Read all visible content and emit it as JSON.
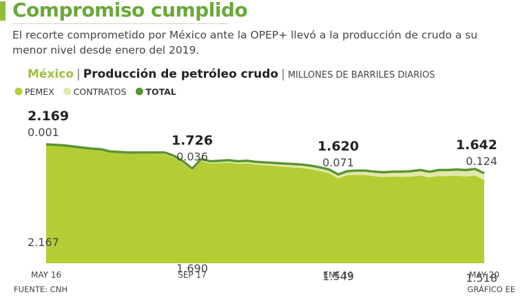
{
  "title": "Compromiso cumplido",
  "subtitle": "El recorte comprometido por México ante la OPEP+ llevó a la producción de crudo a su menor nivel desde enero del 2019.",
  "chart_data": {
    "type": "stacked-area",
    "title_region": "México",
    "title": "Producción de petróleo crudo",
    "unit": "MILLONES DE BARRILES DIARIOS",
    "source": "FUENTE: CNH",
    "credit": "GRÁFICO EE",
    "categories": [
      "MAY 16",
      null,
      null,
      null,
      null,
      null,
      null,
      null,
      null,
      null,
      null,
      null,
      null,
      null,
      null,
      null,
      "SEP 17",
      null,
      null,
      null,
      null,
      null,
      null,
      null,
      null,
      null,
      null,
      null,
      null,
      null,
      null,
      null,
      "ENE 19",
      null,
      null,
      null,
      null,
      null,
      null,
      null,
      null,
      null,
      null,
      null,
      null,
      null,
      null,
      null,
      "MAY 20"
    ],
    "series": [
      {
        "name": "PEMEX",
        "color": "#b5cc34",
        "stack": true,
        "values": [
          2.167,
          2.157,
          2.145,
          2.122,
          2.1,
          2.078,
          2.066,
          2.024,
          2.011,
          1.999,
          1.997,
          1.995,
          1.993,
          1.99,
          1.928,
          1.826,
          1.69,
          1.862,
          1.82,
          1.827,
          1.835,
          1.813,
          1.821,
          1.799,
          1.786,
          1.774,
          1.762,
          1.75,
          1.738,
          1.715,
          1.683,
          1.641,
          1.549,
          1.606,
          1.612,
          1.609,
          1.586,
          1.572,
          1.579,
          1.576,
          1.583,
          1.599,
          1.566,
          1.593,
          1.589,
          1.596,
          1.583,
          1.599,
          1.518
        ],
        "value_labels": [
          "2.167",
          null,
          null,
          null,
          null,
          null,
          null,
          null,
          null,
          null,
          null,
          null,
          null,
          null,
          null,
          null,
          "1.690",
          null,
          null,
          null,
          null,
          null,
          null,
          null,
          null,
          null,
          null,
          null,
          null,
          null,
          null,
          null,
          "1.549",
          null,
          null,
          null,
          null,
          null,
          null,
          null,
          null,
          null,
          null,
          null,
          null,
          null,
          null,
          null,
          "1.518"
        ]
      },
      {
        "name": "CONTRATOS",
        "color": "#e3e8a8",
        "stack": true,
        "values": [
          0.001,
          0.003,
          0.005,
          0.008,
          0.01,
          0.012,
          0.014,
          0.016,
          0.019,
          0.021,
          0.023,
          0.025,
          0.027,
          0.03,
          0.032,
          0.034,
          0.036,
          0.038,
          0.04,
          0.043,
          0.045,
          0.047,
          0.049,
          0.051,
          0.054,
          0.056,
          0.058,
          0.06,
          0.062,
          0.065,
          0.067,
          0.069,
          0.071,
          0.074,
          0.078,
          0.081,
          0.084,
          0.088,
          0.091,
          0.094,
          0.097,
          0.101,
          0.104,
          0.107,
          0.111,
          0.114,
          0.117,
          0.121,
          0.124
        ],
        "value_labels": [
          "0.001",
          null,
          null,
          null,
          null,
          null,
          null,
          null,
          null,
          null,
          null,
          null,
          null,
          null,
          null,
          null,
          "0.036",
          null,
          null,
          null,
          null,
          null,
          null,
          null,
          null,
          null,
          null,
          null,
          null,
          null,
          null,
          null,
          "0.071",
          null,
          null,
          null,
          null,
          null,
          null,
          null,
          null,
          null,
          null,
          null,
          null,
          null,
          null,
          null,
          "0.124"
        ]
      },
      {
        "name": "TOTAL",
        "color": "#5a9432",
        "stack": false,
        "values": [
          2.169,
          2.16,
          2.15,
          2.13,
          2.11,
          2.09,
          2.08,
          2.04,
          2.03,
          2.02,
          2.02,
          2.02,
          2.02,
          2.02,
          1.96,
          1.86,
          1.726,
          1.9,
          1.86,
          1.87,
          1.88,
          1.86,
          1.87,
          1.85,
          1.84,
          1.83,
          1.82,
          1.81,
          1.8,
          1.78,
          1.75,
          1.71,
          1.62,
          1.68,
          1.69,
          1.69,
          1.67,
          1.66,
          1.67,
          1.67,
          1.68,
          1.7,
          1.67,
          1.7,
          1.7,
          1.71,
          1.7,
          1.72,
          1.642
        ],
        "value_labels": [
          "2.169",
          null,
          null,
          null,
          null,
          null,
          null,
          null,
          null,
          null,
          null,
          null,
          null,
          null,
          null,
          null,
          "1.726",
          null,
          null,
          null,
          null,
          null,
          null,
          null,
          null,
          null,
          null,
          null,
          null,
          null,
          null,
          null,
          "1.620",
          null,
          null,
          null,
          null,
          null,
          null,
          null,
          null,
          null,
          null,
          null,
          null,
          null,
          null,
          null,
          "1.642"
        ]
      }
    ]
  }
}
